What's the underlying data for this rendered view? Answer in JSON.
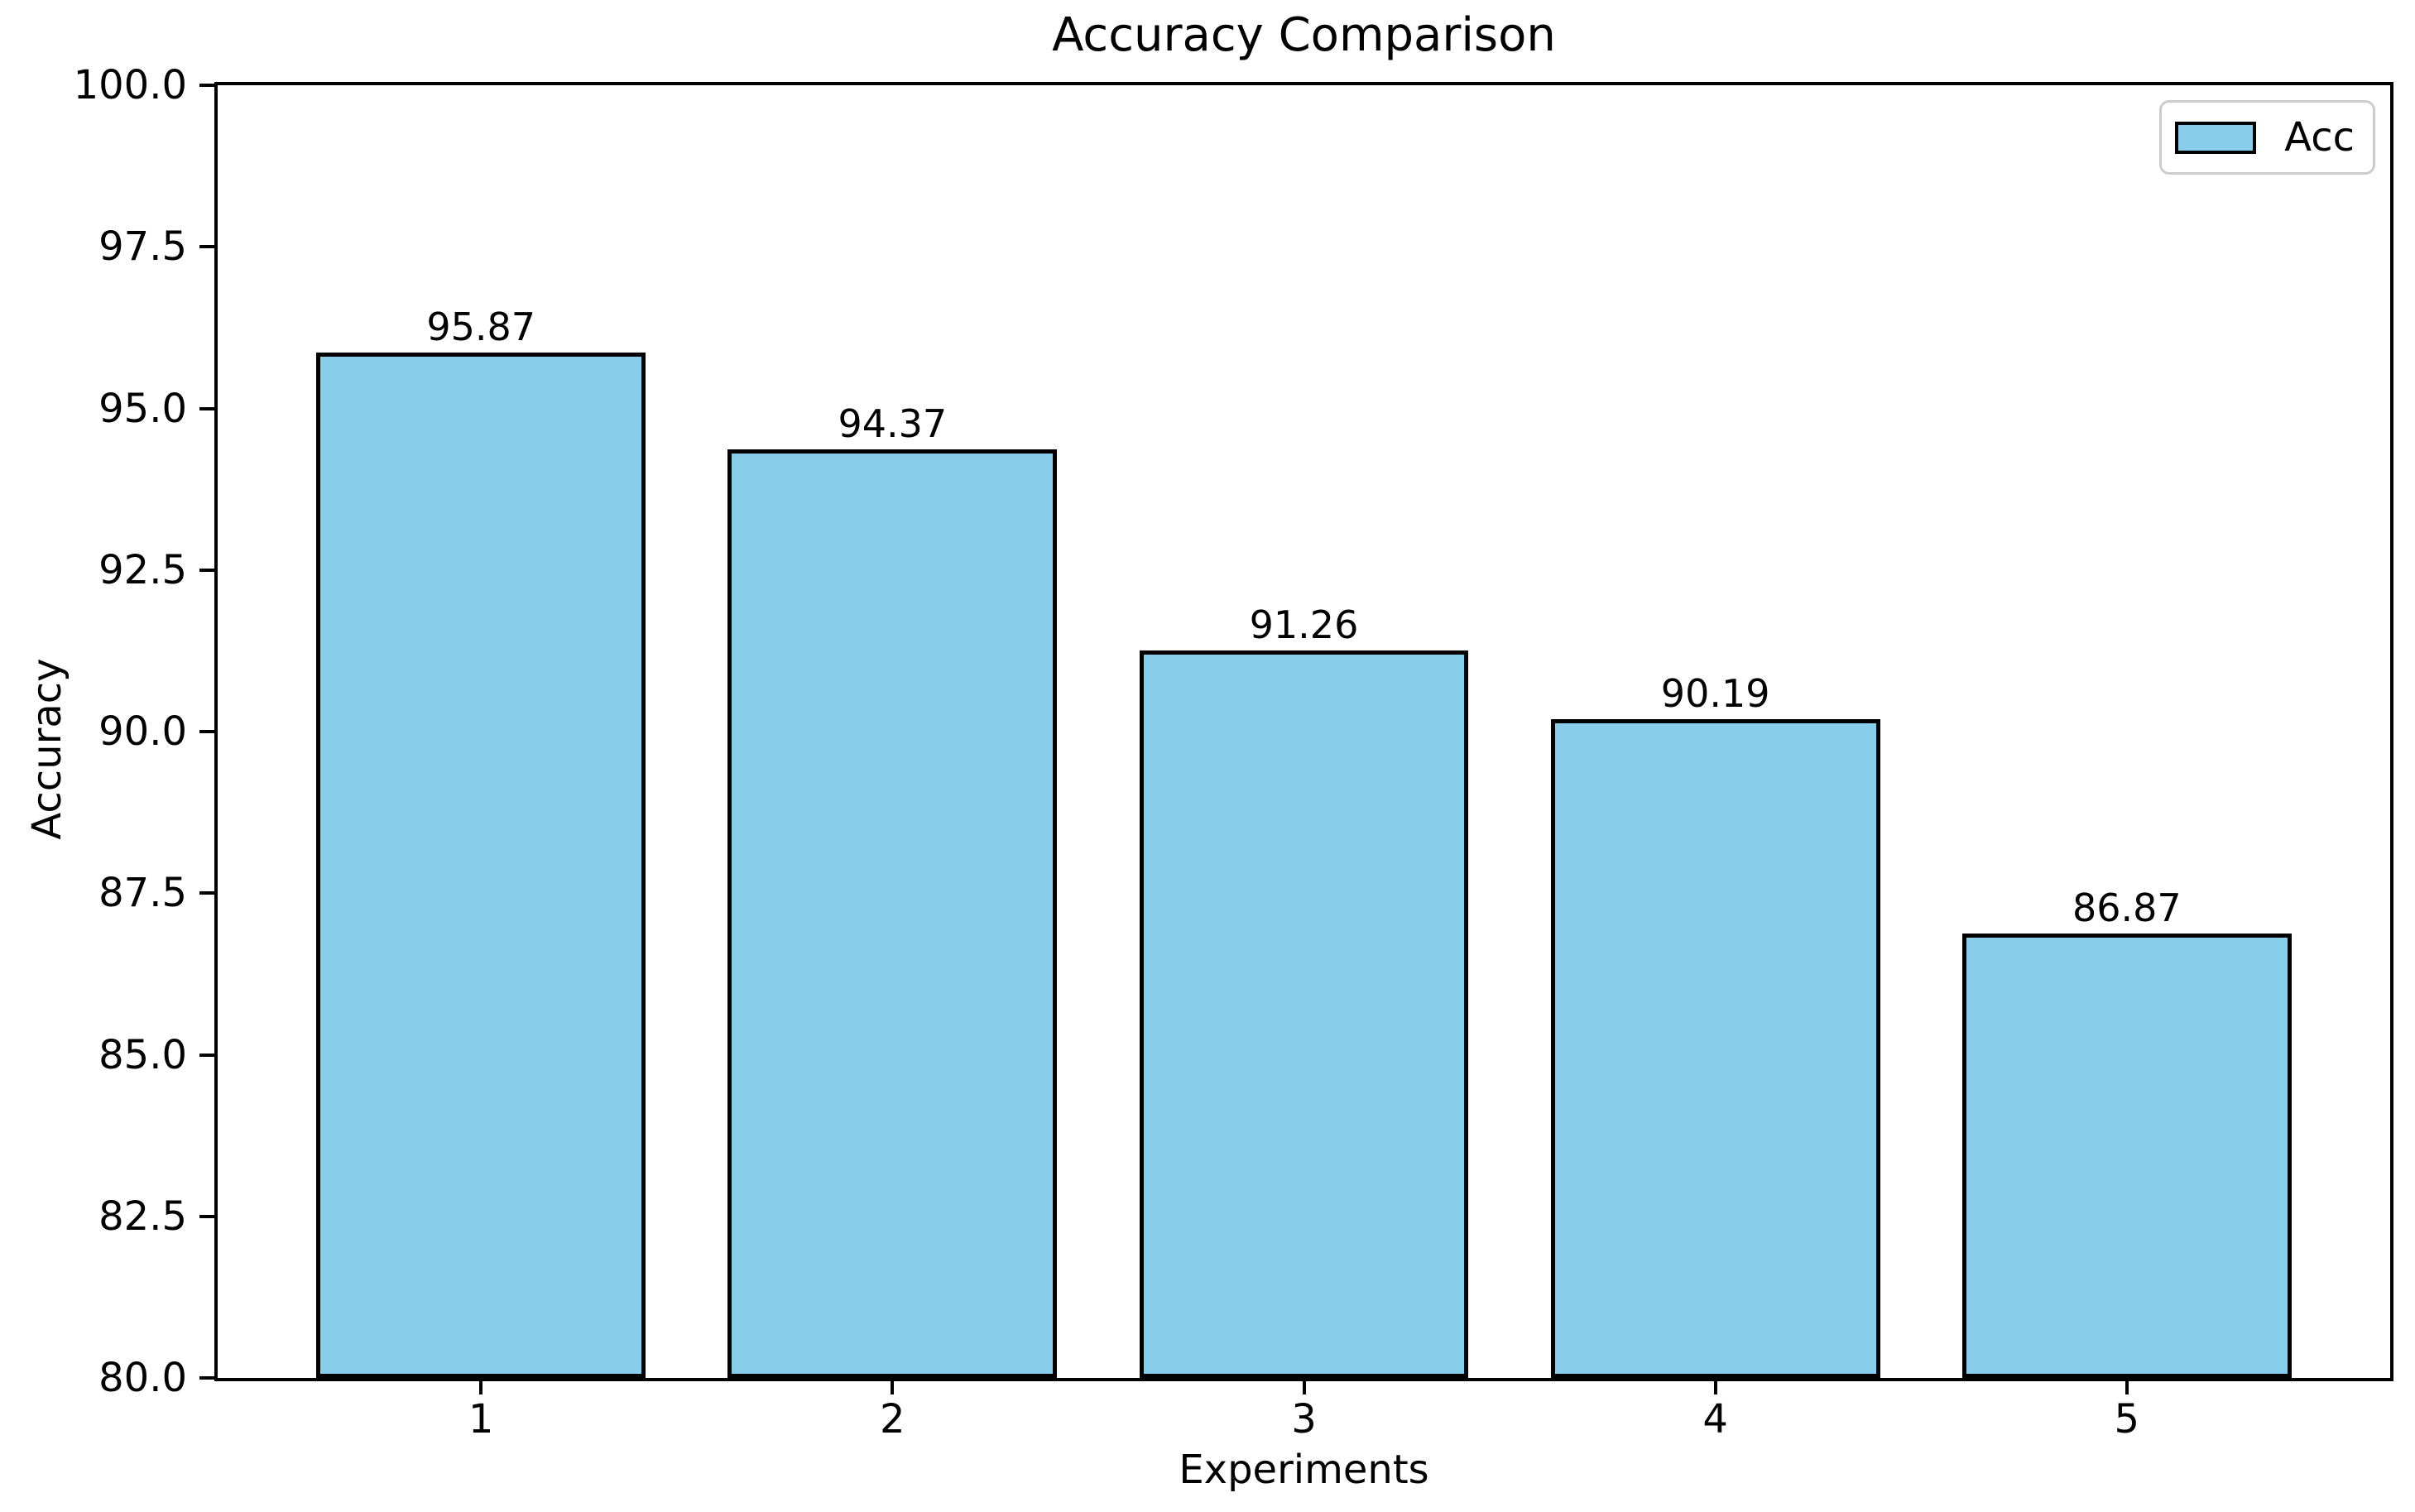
{
  "chart_data": {
    "type": "bar",
    "title": "Accuracy Comparison",
    "xlabel": "Experiments",
    "ylabel": "Accuracy",
    "categories": [
      "1",
      "2",
      "3",
      "4",
      "5"
    ],
    "series": [
      {
        "name": "Acc",
        "values": [
          95.87,
          94.37,
          91.26,
          90.19,
          86.87
        ]
      }
    ],
    "bar_value_labels": [
      "95.87",
      "94.37",
      "91.26",
      "90.19",
      "86.87"
    ],
    "ylim": [
      80.0,
      100.0
    ],
    "ytick_labels": [
      "100.0",
      "97.5",
      "95.0",
      "92.5",
      "90.0",
      "87.5",
      "85.0",
      "82.5",
      "80.0"
    ],
    "ytick_values": [
      100.0,
      97.5,
      95.0,
      92.5,
      90.0,
      87.5,
      85.0,
      82.5,
      80.0
    ],
    "grid": false,
    "legend": {
      "position": "upper right",
      "entries": [
        {
          "label": "Acc",
          "color": "#87CEEB"
        }
      ]
    },
    "colors": {
      "bar_fill": "#87CEEB",
      "bar_edge": "#000000",
      "axis": "#000000",
      "legend_border": "#cccccc",
      "background": "#ffffff"
    }
  }
}
